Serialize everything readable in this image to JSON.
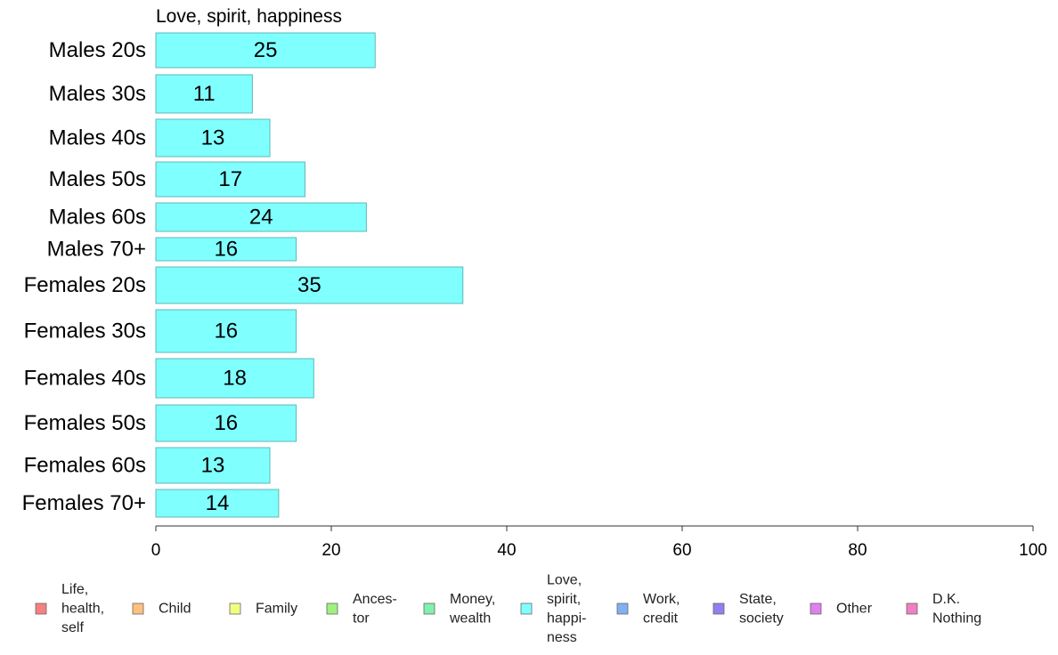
{
  "chart_data": {
    "type": "bar",
    "orientation": "horizontal",
    "title": "Love, spirit, happiness",
    "categories": [
      "Males 20s",
      "Males 30s",
      "Males 40s",
      "Males 50s",
      "Males 60s",
      "Males 70+",
      "Females 20s",
      "Females 30s",
      "Females 40s",
      "Females 50s",
      "Females 60s",
      "Females 70+"
    ],
    "values": [
      25,
      11,
      13,
      17,
      24,
      16,
      35,
      16,
      18,
      16,
      13,
      14
    ],
    "value_labels": [
      "25",
      "11",
      "13",
      "17",
      "24",
      "16",
      "35",
      "16",
      "18",
      "16",
      "13",
      "14"
    ],
    "xlim": [
      0,
      100
    ],
    "xticks": [
      "0",
      "20",
      "40",
      "60",
      "80",
      "100"
    ],
    "bar_color": "#80ffff",
    "bar_edge_color": "#5fb7b7",
    "grid": false,
    "legend_position": "bottom",
    "legend": [
      {
        "lines": [
          "Life,",
          "health,",
          "self"
        ],
        "color": "#f88080"
      },
      {
        "lines": [
          "Child"
        ],
        "color": "#ffc080"
      },
      {
        "lines": [
          "Family"
        ],
        "color": "#f0ff80"
      },
      {
        "lines": [
          "Ances-",
          "tor"
        ],
        "color": "#a0f080"
      },
      {
        "lines": [
          "Money,",
          "wealth"
        ],
        "color": "#80f0b0"
      },
      {
        "lines": [
          "Love,",
          "spirit,",
          "happi-",
          "ness"
        ],
        "color": "#80ffff"
      },
      {
        "lines": [
          "Work,",
          "credit"
        ],
        "color": "#80b0f0"
      },
      {
        "lines": [
          "State,",
          "society"
        ],
        "color": "#9080f0"
      },
      {
        "lines": [
          "Other"
        ],
        "color": "#e080f0"
      },
      {
        "lines": [
          "D.K.",
          "Nothing"
        ],
        "color": "#f080c0"
      }
    ]
  }
}
